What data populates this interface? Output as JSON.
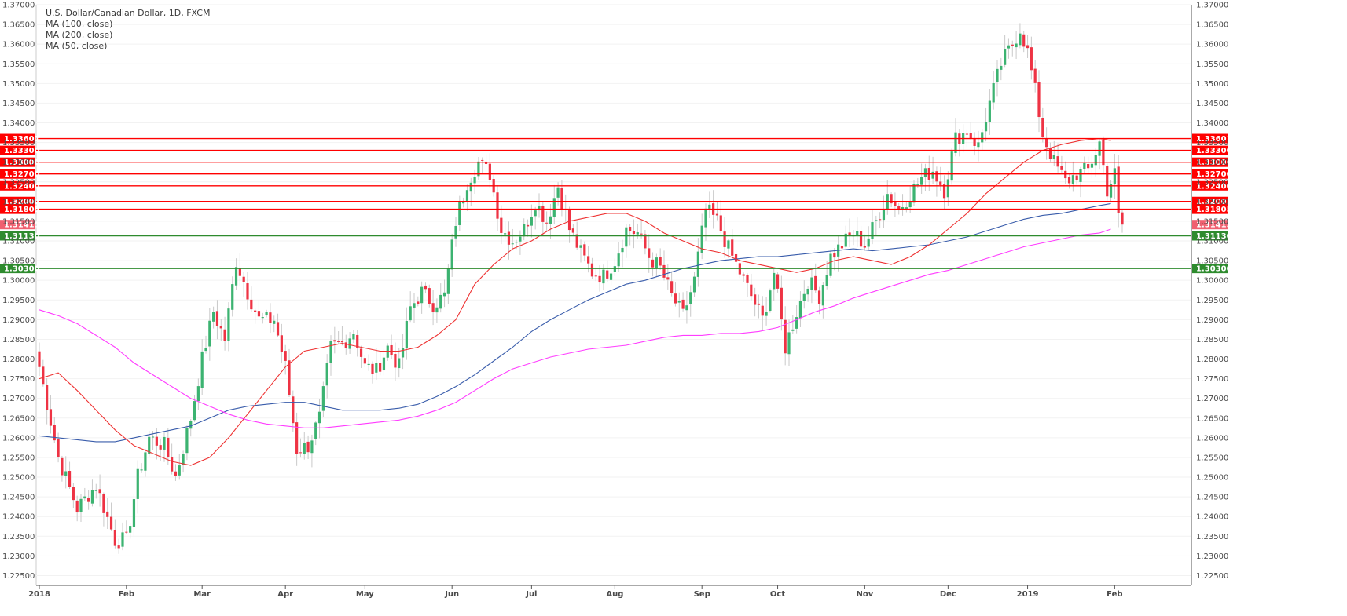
{
  "chart_data": {
    "type": "candlestick",
    "title": "U.S. Dollar/Canadian Dollar, 1D, FXCM",
    "indicators": [
      {
        "name": "MA (100, close)",
        "color": "#3a5dab"
      },
      {
        "name": "MA (200, close)",
        "color": "#ff3dff"
      },
      {
        "name": "MA (50, close)",
        "color": "#ee3333"
      }
    ],
    "ylim": [
      1.2225,
      1.37
    ],
    "yticks": [
      "1.37000",
      "1.36500",
      "1.36000",
      "1.35500",
      "1.35000",
      "1.34500",
      "1.34000",
      "1.33500",
      "1.33000",
      "1.32500",
      "1.32000",
      "1.31500",
      "1.31000",
      "1.30500",
      "1.30000",
      "1.29500",
      "1.29000",
      "1.28500",
      "1.28000",
      "1.27500",
      "1.27000",
      "1.26500",
      "1.26000",
      "1.25500",
      "1.25000",
      "1.24500",
      "1.24000",
      "1.23500",
      "1.23000",
      "1.22500"
    ],
    "xticks": [
      {
        "label": "2018",
        "day": 0
      },
      {
        "label": "Feb",
        "day": 23
      },
      {
        "label": "Mar",
        "day": 43
      },
      {
        "label": "Apr",
        "day": 65
      },
      {
        "label": "May",
        "day": 86
      },
      {
        "label": "Jun",
        "day": 109
      },
      {
        "label": "Jul",
        "day": 130
      },
      {
        "label": "Aug",
        "day": 152
      },
      {
        "label": "Sep",
        "day": 175
      },
      {
        "label": "Oct",
        "day": 195
      },
      {
        "label": "Nov",
        "day": 218
      },
      {
        "label": "Dec",
        "day": 240
      },
      {
        "label": "2019",
        "day": 261
      },
      {
        "label": "Feb",
        "day": 284
      }
    ],
    "resistance_levels": [
      "1.33601",
      "1.33300",
      "1.33000",
      "1.32700",
      "1.32400",
      "1.32002",
      "1.31805"
    ],
    "support_levels": [
      "1.31130",
      "1.30300"
    ],
    "last_price": "1.31415",
    "colors": {
      "up": "#3cb371",
      "down": "#ee3344",
      "resistance": "#ff0000",
      "support": "#2e8b2e"
    },
    "close_path": [
      [
        0,
        1.278
      ],
      [
        5,
        1.255
      ],
      [
        10,
        1.242
      ],
      [
        15,
        1.248
      ],
      [
        20,
        1.234
      ],
      [
        23,
        1.234
      ],
      [
        26,
        1.25
      ],
      [
        29,
        1.26
      ],
      [
        33,
        1.258
      ],
      [
        36,
        1.25
      ],
      [
        40,
        1.265
      ],
      [
        43,
        1.28
      ],
      [
        46,
        1.292
      ],
      [
        49,
        1.285
      ],
      [
        52,
        1.305
      ],
      [
        55,
        1.297
      ],
      [
        58,
        1.29
      ],
      [
        62,
        1.29
      ],
      [
        65,
        1.278
      ],
      [
        68,
        1.257
      ],
      [
        71,
        1.258
      ],
      [
        74,
        1.265
      ],
      [
        77,
        1.283
      ],
      [
        80,
        1.284
      ],
      [
        83,
        1.287
      ],
      [
        86,
        1.278
      ],
      [
        89,
        1.277
      ],
      [
        92,
        1.283
      ],
      [
        95,
        1.278
      ],
      [
        98,
        1.293
      ],
      [
        101,
        1.297
      ],
      [
        104,
        1.294
      ],
      [
        107,
        1.296
      ],
      [
        110,
        1.315
      ],
      [
        113,
        1.325
      ],
      [
        116,
        1.33
      ],
      [
        119,
        1.327
      ],
      [
        122,
        1.313
      ],
      [
        125,
        1.31
      ],
      [
        128,
        1.313
      ],
      [
        131,
        1.32
      ],
      [
        134,
        1.315
      ],
      [
        137,
        1.324
      ],
      [
        140,
        1.313
      ],
      [
        143,
        1.307
      ],
      [
        146,
        1.302
      ],
      [
        149,
        1.301
      ],
      [
        152,
        1.305
      ],
      [
        155,
        1.313
      ],
      [
        158,
        1.312
      ],
      [
        161,
        1.306
      ],
      [
        164,
        1.303
      ],
      [
        167,
        1.296
      ],
      [
        170,
        1.291
      ],
      [
        173,
        1.3
      ],
      [
        176,
        1.318
      ],
      [
        179,
        1.315
      ],
      [
        182,
        1.308
      ],
      [
        185,
        1.302
      ],
      [
        188,
        1.296
      ],
      [
        191,
        1.29
      ],
      [
        194,
        1.302
      ],
      [
        197,
        1.283
      ],
      [
        200,
        1.292
      ],
      [
        203,
        1.3
      ],
      [
        206,
        1.296
      ],
      [
        209,
        1.306
      ],
      [
        212,
        1.309
      ],
      [
        215,
        1.312
      ],
      [
        218,
        1.309
      ],
      [
        221,
        1.315
      ],
      [
        224,
        1.322
      ],
      [
        227,
        1.318
      ],
      [
        230,
        1.322
      ],
      [
        233,
        1.326
      ],
      [
        236,
        1.328
      ],
      [
        239,
        1.323
      ],
      [
        242,
        1.336
      ],
      [
        245,
        1.338
      ],
      [
        248,
        1.334
      ],
      [
        251,
        1.345
      ],
      [
        254,
        1.355
      ],
      [
        257,
        1.36
      ],
      [
        259,
        1.364
      ],
      [
        261,
        1.358
      ],
      [
        263,
        1.348
      ],
      [
        265,
        1.337
      ],
      [
        268,
        1.33
      ],
      [
        271,
        1.325
      ],
      [
        274,
        1.327
      ],
      [
        277,
        1.328
      ],
      [
        280,
        1.335
      ],
      [
        282,
        1.323
      ],
      [
        284,
        1.327
      ],
      [
        285,
        1.316
      ],
      [
        286,
        1.3141
      ]
    ],
    "ma50_path": [
      [
        0,
        1.275
      ],
      [
        5,
        1.2765
      ],
      [
        10,
        1.272
      ],
      [
        15,
        1.267
      ],
      [
        20,
        1.262
      ],
      [
        25,
        1.258
      ],
      [
        30,
        1.256
      ],
      [
        35,
        1.254
      ],
      [
        40,
        1.253
      ],
      [
        45,
        1.255
      ],
      [
        50,
        1.26
      ],
      [
        55,
        1.266
      ],
      [
        60,
        1.272
      ],
      [
        65,
        1.278
      ],
      [
        70,
        1.282
      ],
      [
        75,
        1.283
      ],
      [
        80,
        1.284
      ],
      [
        85,
        1.283
      ],
      [
        90,
        1.282
      ],
      [
        95,
        1.282
      ],
      [
        100,
        1.283
      ],
      [
        105,
        1.286
      ],
      [
        110,
        1.29
      ],
      [
        115,
        1.299
      ],
      [
        120,
        1.304
      ],
      [
        125,
        1.308
      ],
      [
        130,
        1.31
      ],
      [
        135,
        1.313
      ],
      [
        140,
        1.315
      ],
      [
        145,
        1.316
      ],
      [
        150,
        1.317
      ],
      [
        155,
        1.317
      ],
      [
        160,
        1.315
      ],
      [
        165,
        1.312
      ],
      [
        170,
        1.31
      ],
      [
        175,
        1.308
      ],
      [
        180,
        1.307
      ],
      [
        185,
        1.305
      ],
      [
        190,
        1.304
      ],
      [
        195,
        1.303
      ],
      [
        200,
        1.302
      ],
      [
        205,
        1.303
      ],
      [
        210,
        1.305
      ],
      [
        215,
        1.306
      ],
      [
        220,
        1.305
      ],
      [
        225,
        1.304
      ],
      [
        230,
        1.306
      ],
      [
        235,
        1.309
      ],
      [
        240,
        1.313
      ],
      [
        245,
        1.317
      ],
      [
        250,
        1.322
      ],
      [
        255,
        1.326
      ],
      [
        260,
        1.33
      ],
      [
        265,
        1.333
      ],
      [
        270,
        1.3345
      ],
      [
        275,
        1.3355
      ],
      [
        280,
        1.336
      ],
      [
        283,
        1.3355
      ]
    ],
    "ma100_path": [
      [
        0,
        1.2605
      ],
      [
        5,
        1.26
      ],
      [
        10,
        1.2595
      ],
      [
        15,
        1.259
      ],
      [
        20,
        1.259
      ],
      [
        25,
        1.26
      ],
      [
        30,
        1.261
      ],
      [
        35,
        1.262
      ],
      [
        40,
        1.263
      ],
      [
        45,
        1.265
      ],
      [
        50,
        1.267
      ],
      [
        55,
        1.268
      ],
      [
        60,
        1.2685
      ],
      [
        65,
        1.269
      ],
      [
        70,
        1.269
      ],
      [
        75,
        1.268
      ],
      [
        80,
        1.267
      ],
      [
        85,
        1.267
      ],
      [
        90,
        1.267
      ],
      [
        95,
        1.2675
      ],
      [
        100,
        1.2685
      ],
      [
        105,
        1.2705
      ],
      [
        110,
        1.273
      ],
      [
        115,
        1.276
      ],
      [
        120,
        1.2795
      ],
      [
        125,
        1.283
      ],
      [
        130,
        1.287
      ],
      [
        135,
        1.29
      ],
      [
        140,
        1.2925
      ],
      [
        145,
        1.295
      ],
      [
        150,
        1.297
      ],
      [
        155,
        1.299
      ],
      [
        160,
        1.3
      ],
      [
        165,
        1.3015
      ],
      [
        170,
        1.303
      ],
      [
        175,
        1.304
      ],
      [
        180,
        1.305
      ],
      [
        185,
        1.3055
      ],
      [
        190,
        1.306
      ],
      [
        195,
        1.306
      ],
      [
        200,
        1.3065
      ],
      [
        205,
        1.307
      ],
      [
        210,
        1.3075
      ],
      [
        215,
        1.308
      ],
      [
        220,
        1.3075
      ],
      [
        225,
        1.308
      ],
      [
        230,
        1.3085
      ],
      [
        235,
        1.309
      ],
      [
        240,
        1.31
      ],
      [
        245,
        1.311
      ],
      [
        250,
        1.3125
      ],
      [
        255,
        1.314
      ],
      [
        260,
        1.3155
      ],
      [
        265,
        1.3165
      ],
      [
        270,
        1.317
      ],
      [
        275,
        1.318
      ],
      [
        280,
        1.319
      ],
      [
        283,
        1.3195
      ]
    ],
    "ma200_path": [
      [
        0,
        1.2925
      ],
      [
        5,
        1.291
      ],
      [
        10,
        1.289
      ],
      [
        15,
        1.286
      ],
      [
        20,
        1.283
      ],
      [
        25,
        1.279
      ],
      [
        30,
        1.276
      ],
      [
        35,
        1.273
      ],
      [
        40,
        1.27
      ],
      [
        45,
        1.268
      ],
      [
        50,
        1.266
      ],
      [
        55,
        1.2645
      ],
      [
        60,
        1.2635
      ],
      [
        65,
        1.263
      ],
      [
        70,
        1.2625
      ],
      [
        75,
        1.2625
      ],
      [
        80,
        1.263
      ],
      [
        85,
        1.2635
      ],
      [
        90,
        1.264
      ],
      [
        95,
        1.2645
      ],
      [
        100,
        1.2655
      ],
      [
        105,
        1.267
      ],
      [
        110,
        1.269
      ],
      [
        115,
        1.272
      ],
      [
        120,
        1.275
      ],
      [
        125,
        1.2775
      ],
      [
        130,
        1.279
      ],
      [
        135,
        1.2805
      ],
      [
        140,
        1.2815
      ],
      [
        145,
        1.2825
      ],
      [
        150,
        1.283
      ],
      [
        155,
        1.2835
      ],
      [
        160,
        1.2845
      ],
      [
        165,
        1.2855
      ],
      [
        170,
        1.286
      ],
      [
        175,
        1.286
      ],
      [
        180,
        1.2865
      ],
      [
        185,
        1.2865
      ],
      [
        190,
        1.287
      ],
      [
        195,
        1.288
      ],
      [
        200,
        1.29
      ],
      [
        205,
        1.292
      ],
      [
        210,
        1.2935
      ],
      [
        215,
        1.2955
      ],
      [
        220,
        1.297
      ],
      [
        225,
        1.2985
      ],
      [
        230,
        1.3
      ],
      [
        235,
        1.3015
      ],
      [
        240,
        1.3025
      ],
      [
        245,
        1.304
      ],
      [
        250,
        1.3055
      ],
      [
        255,
        1.307
      ],
      [
        260,
        1.3085
      ],
      [
        265,
        1.3095
      ],
      [
        270,
        1.3105
      ],
      [
        275,
        1.3115
      ],
      [
        280,
        1.312
      ],
      [
        283,
        1.313
      ]
    ]
  }
}
